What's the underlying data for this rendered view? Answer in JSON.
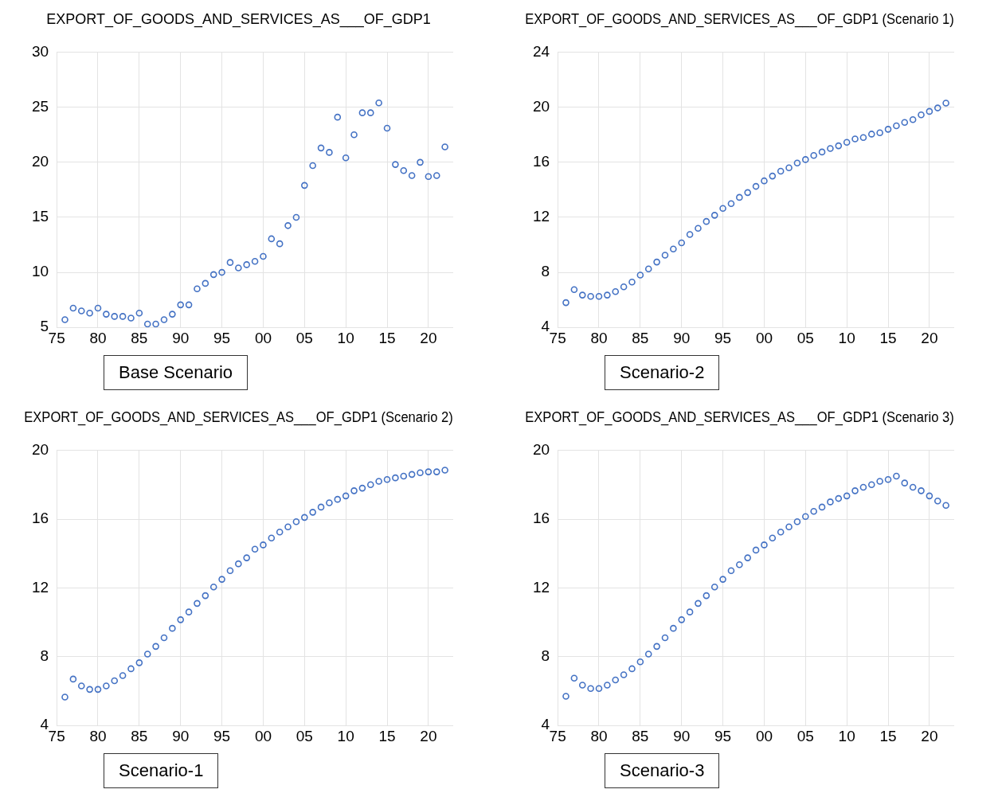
{
  "chart_data": [
    {
      "type": "scatter",
      "title": "EXPORT_OF_GOODS_AND_SERVICES_AS___OF_GDP1",
      "annotations": [
        "Base Scenario"
      ],
      "marker": "circle",
      "grid": true,
      "color": "#4472c4",
      "x": [
        1976,
        1977,
        1978,
        1979,
        1980,
        1981,
        1982,
        1983,
        1984,
        1985,
        1986,
        1987,
        1988,
        1989,
        1990,
        1991,
        1992,
        1993,
        1994,
        1995,
        1996,
        1997,
        1998,
        1999,
        2000,
        2001,
        2002,
        2003,
        2004,
        2005,
        2006,
        2007,
        2008,
        2009,
        2010,
        2011,
        2012,
        2013,
        2014,
        2015,
        2016,
        2017,
        2018,
        2019,
        2020,
        2021,
        2022
      ],
      "values": [
        5.7,
        6.75,
        6.5,
        6.3,
        6.75,
        6.2,
        6.0,
        6.0,
        5.85,
        6.3,
        5.3,
        5.3,
        5.7,
        6.2,
        7.05,
        7.05,
        8.5,
        9.0,
        9.8,
        10.0,
        10.9,
        10.4,
        10.7,
        11.0,
        11.45,
        13.05,
        12.6,
        14.25,
        15.0,
        17.9,
        19.7,
        21.3,
        20.9,
        24.1,
        20.4,
        22.5,
        24.5,
        24.5,
        25.4,
        23.1,
        19.8,
        19.25,
        18.8,
        20.0,
        18.7,
        18.8,
        21.4
      ],
      "xlim": [
        1975,
        2023
      ],
      "xticks": [
        {
          "value": 1975,
          "label": "75"
        },
        {
          "value": 1980,
          "label": "80"
        },
        {
          "value": 1985,
          "label": "85"
        },
        {
          "value": 1990,
          "label": "90"
        },
        {
          "value": 1995,
          "label": "95"
        },
        {
          "value": 2000,
          "label": "00"
        },
        {
          "value": 2005,
          "label": "05"
        },
        {
          "value": 2010,
          "label": "10"
        },
        {
          "value": 2015,
          "label": "15"
        },
        {
          "value": 2020,
          "label": "20"
        }
      ],
      "ylim": [
        5,
        30
      ],
      "yticks": [
        5,
        10,
        15,
        20,
        25,
        30
      ]
    },
    {
      "type": "scatter",
      "title": "EXPORT_OF_GOODS_AND_SERVICES_AS___OF_GDP1 (Scenario 1)",
      "annotations": [
        "Scenario-2"
      ],
      "marker": "circle",
      "grid": true,
      "color": "#4472c4",
      "x": [
        1976,
        1977,
        1978,
        1979,
        1980,
        1981,
        1982,
        1983,
        1984,
        1985,
        1986,
        1987,
        1988,
        1989,
        1990,
        1991,
        1992,
        1993,
        1994,
        1995,
        1996,
        1997,
        1998,
        1999,
        2000,
        2001,
        2002,
        2003,
        2004,
        2005,
        2006,
        2007,
        2008,
        2009,
        2010,
        2011,
        2012,
        2013,
        2014,
        2015,
        2016,
        2017,
        2018,
        2019,
        2020,
        2021,
        2022
      ],
      "values": [
        5.8,
        6.75,
        6.35,
        6.25,
        6.25,
        6.35,
        6.6,
        6.95,
        7.3,
        7.8,
        8.25,
        8.75,
        9.25,
        9.7,
        10.15,
        10.75,
        11.2,
        11.7,
        12.15,
        12.65,
        13.0,
        13.45,
        13.8,
        14.25,
        14.65,
        15.0,
        15.35,
        15.6,
        15.95,
        16.2,
        16.5,
        16.75,
        17.0,
        17.2,
        17.45,
        17.7,
        17.8,
        18.05,
        18.15,
        18.4,
        18.65,
        18.9,
        19.1,
        19.45,
        19.7,
        19.95,
        20.3
      ],
      "xlim": [
        1975,
        2023
      ],
      "xticks": [
        {
          "value": 1975,
          "label": "75"
        },
        {
          "value": 1980,
          "label": "80"
        },
        {
          "value": 1985,
          "label": "85"
        },
        {
          "value": 1990,
          "label": "90"
        },
        {
          "value": 1995,
          "label": "95"
        },
        {
          "value": 2000,
          "label": "00"
        },
        {
          "value": 2005,
          "label": "05"
        },
        {
          "value": 2010,
          "label": "10"
        },
        {
          "value": 2015,
          "label": "15"
        },
        {
          "value": 2020,
          "label": "20"
        }
      ],
      "ylim": [
        4,
        24
      ],
      "yticks": [
        4,
        8,
        12,
        16,
        20,
        24
      ]
    },
    {
      "type": "scatter",
      "title": "EXPORT_OF_GOODS_AND_SERVICES_AS___OF_GDP1 (Scenario 2)",
      "annotations": [
        "Scenario-1"
      ],
      "marker": "circle",
      "grid": true,
      "color": "#4472c4",
      "x": [
        1976,
        1977,
        1978,
        1979,
        1980,
        1981,
        1982,
        1983,
        1984,
        1985,
        1986,
        1987,
        1988,
        1989,
        1990,
        1991,
        1992,
        1993,
        1994,
        1995,
        1996,
        1997,
        1998,
        1999,
        2000,
        2001,
        2002,
        2003,
        2004,
        2005,
        2006,
        2007,
        2008,
        2009,
        2010,
        2011,
        2012,
        2013,
        2014,
        2015,
        2016,
        2017,
        2018,
        2019,
        2020,
        2021,
        2022
      ],
      "values": [
        5.65,
        6.7,
        6.3,
        6.1,
        6.1,
        6.3,
        6.6,
        6.9,
        7.3,
        7.65,
        8.15,
        8.6,
        9.1,
        9.65,
        10.15,
        10.6,
        11.1,
        11.55,
        12.05,
        12.5,
        13.0,
        13.4,
        13.75,
        14.25,
        14.5,
        14.9,
        15.25,
        15.55,
        15.85,
        16.1,
        16.4,
        16.7,
        16.95,
        17.15,
        17.35,
        17.65,
        17.8,
        18.0,
        18.2,
        18.3,
        18.4,
        18.5,
        18.6,
        18.7,
        18.75,
        18.75,
        18.85
      ],
      "xlim": [
        1975,
        2023
      ],
      "xticks": [
        {
          "value": 1975,
          "label": "75"
        },
        {
          "value": 1980,
          "label": "80"
        },
        {
          "value": 1985,
          "label": "85"
        },
        {
          "value": 1990,
          "label": "90"
        },
        {
          "value": 1995,
          "label": "95"
        },
        {
          "value": 2000,
          "label": "00"
        },
        {
          "value": 2005,
          "label": "05"
        },
        {
          "value": 2010,
          "label": "10"
        },
        {
          "value": 2015,
          "label": "15"
        },
        {
          "value": 2020,
          "label": "20"
        }
      ],
      "ylim": [
        4,
        20
      ],
      "yticks": [
        4,
        8,
        12,
        16,
        20
      ]
    },
    {
      "type": "scatter",
      "title": "EXPORT_OF_GOODS_AND_SERVICES_AS___OF_GDP1 (Scenario 3)",
      "annotations": [
        "Scenario-3"
      ],
      "marker": "circle",
      "grid": true,
      "color": "#4472c4",
      "x": [
        1976,
        1977,
        1978,
        1979,
        1980,
        1981,
        1982,
        1983,
        1984,
        1985,
        1986,
        1987,
        1988,
        1989,
        1990,
        1991,
        1992,
        1993,
        1994,
        1995,
        1996,
        1997,
        1998,
        1999,
        2000,
        2001,
        2002,
        2003,
        2004,
        2005,
        2006,
        2007,
        2008,
        2009,
        2010,
        2011,
        2012,
        2013,
        2014,
        2015,
        2016,
        2017,
        2018,
        2019,
        2020,
        2021,
        2022
      ],
      "values": [
        5.7,
        6.75,
        6.35,
        6.15,
        6.15,
        6.35,
        6.65,
        6.95,
        7.3,
        7.7,
        8.15,
        8.6,
        9.1,
        9.65,
        10.15,
        10.6,
        11.1,
        11.55,
        12.05,
        12.5,
        13.0,
        13.35,
        13.75,
        14.2,
        14.5,
        14.9,
        15.25,
        15.55,
        15.85,
        16.15,
        16.45,
        16.7,
        17.0,
        17.2,
        17.35,
        17.65,
        17.85,
        18.0,
        18.2,
        18.3,
        18.5,
        18.1,
        17.85,
        17.65,
        17.35,
        17.05,
        16.8
      ],
      "xlim": [
        1975,
        2023
      ],
      "xticks": [
        {
          "value": 1975,
          "label": "75"
        },
        {
          "value": 1980,
          "label": "80"
        },
        {
          "value": 1985,
          "label": "85"
        },
        {
          "value": 1990,
          "label": "90"
        },
        {
          "value": 1995,
          "label": "95"
        },
        {
          "value": 2000,
          "label": "00"
        },
        {
          "value": 2005,
          "label": "05"
        },
        {
          "value": 2010,
          "label": "10"
        },
        {
          "value": 2015,
          "label": "15"
        },
        {
          "value": 2020,
          "label": "20"
        }
      ],
      "ylim": [
        4,
        20
      ],
      "yticks": [
        4,
        8,
        12,
        16,
        20
      ]
    }
  ]
}
